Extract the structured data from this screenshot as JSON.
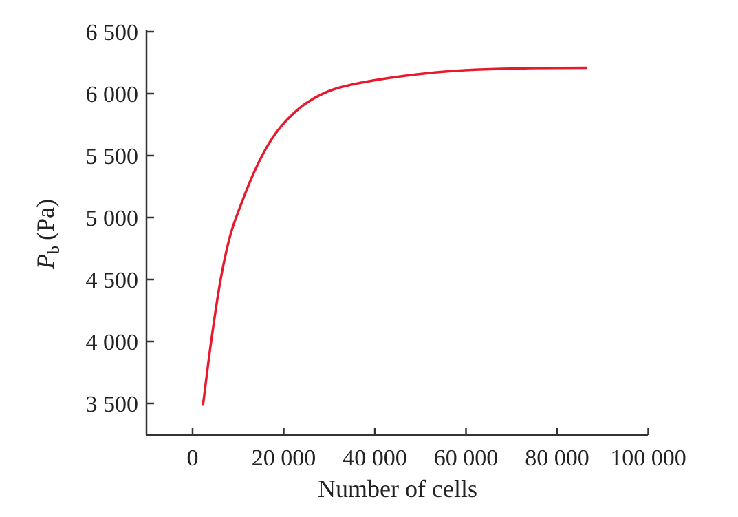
{
  "chart_data": {
    "type": "line",
    "title": "",
    "xlabel": "Number of cells",
    "ylabel_main": "P",
    "ylabel_sub": "b",
    "ylabel_unit": "(Pa)",
    "xlim": [
      -10000,
      100000
    ],
    "ylim": [
      3250,
      6500
    ],
    "xticks": [
      0,
      20000,
      40000,
      60000,
      80000,
      100000
    ],
    "xtick_labels": [
      "0",
      "20 000",
      "40 000",
      "60 000",
      "80 000",
      "100 000"
    ],
    "yticks": [
      3500,
      4000,
      4500,
      5000,
      5500,
      6000,
      6500
    ],
    "ytick_labels": [
      "3 500",
      "4 000",
      "4 500",
      "5 000",
      "5 500",
      "6 000",
      "6 500"
    ],
    "grid": false,
    "series": [
      {
        "color": "#e8192c",
        "x": [
          2300,
          4100,
          6100,
          8150,
          10150,
          13500,
          16900,
          20300,
          25000,
          31000,
          39800,
          51900,
          62000,
          75500,
          86400
        ],
        "y": [
          3490,
          4007,
          4489,
          4840,
          5059,
          5366,
          5607,
          5772,
          5925,
          6035,
          6107,
          6166,
          6193,
          6206,
          6208
        ]
      }
    ]
  }
}
